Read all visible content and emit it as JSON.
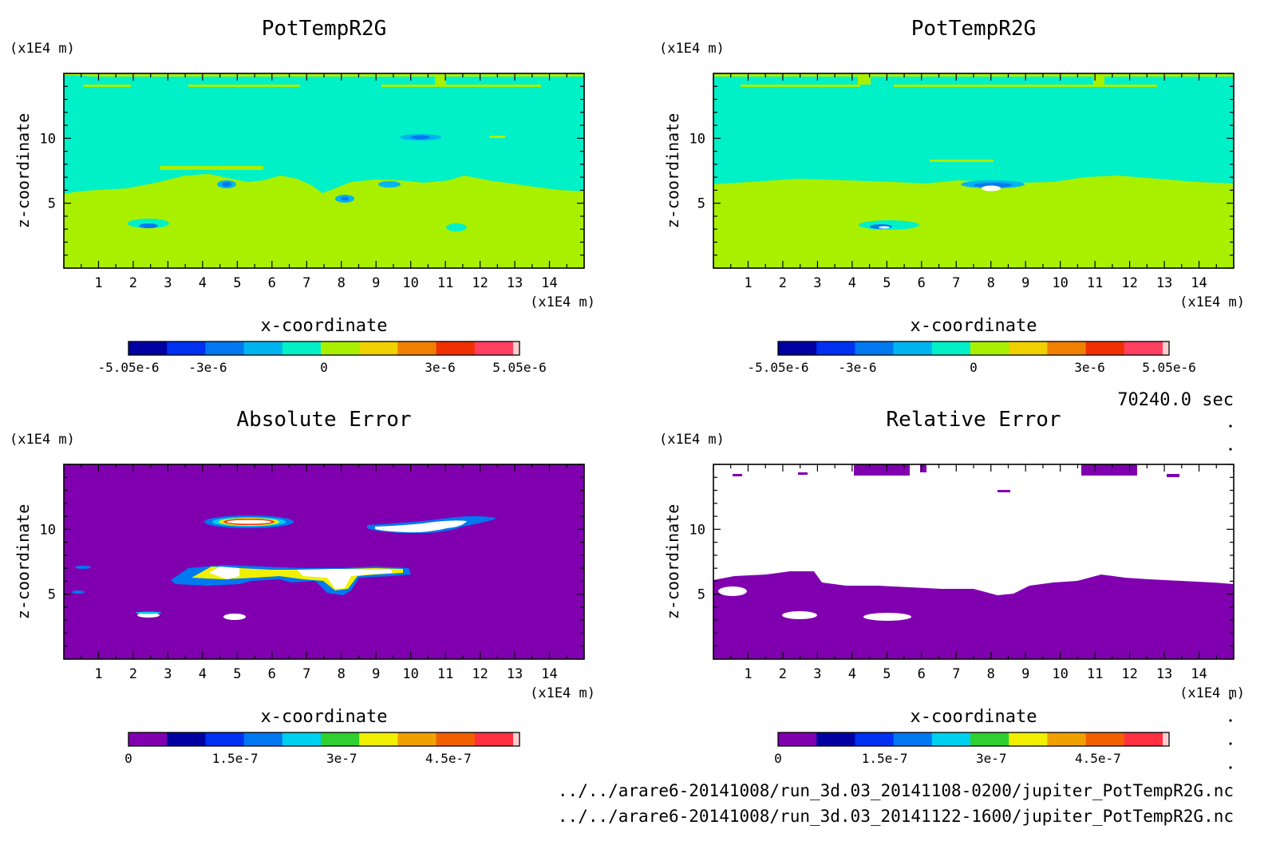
{
  "time_label": "70240.0 sec",
  "file_paths": [
    "../../arare6-20141008/run_3d.03_20141108-0200/jupiter_PotTempR2G.nc",
    "../../arare6-20141008/run_3d.03_20141122-1600/jupiter_PotTempR2G.nc"
  ],
  "colors": {
    "cyan_green": "#00f0c8",
    "yellow_green": "#a8f000",
    "purple": "#8000b0",
    "white": "#ffffff"
  },
  "chart_data": [
    {
      "type": "heatmap",
      "title": "PotTempR2G",
      "xlabel": "x-coordinate",
      "ylabel": "z-coordinate",
      "x_unit": "(x1E4 m)",
      "y_unit": "(x1E4 m)",
      "xlim": [
        0,
        15
      ],
      "ylim": [
        0,
        15
      ],
      "x_ticks": [
        "1",
        "2",
        "3",
        "4",
        "5",
        "6",
        "7",
        "8",
        "9",
        "10",
        "11",
        "12",
        "13",
        "14"
      ],
      "y_ticks": [
        "5",
        "10"
      ],
      "colorbar": {
        "colors": [
          "#0000a0",
          "#0030f0",
          "#0078f0",
          "#00b4f0",
          "#00f0c8",
          "#a8f000",
          "#f0d000",
          "#f08000",
          "#f03000",
          "#ff4060"
        ],
        "labels": [
          "-5.05e-6",
          "-3e-6",
          "0",
          "3e-6",
          "5.05e-6"
        ],
        "range": [
          -5.05e-06,
          5.05e-06
        ]
      }
    },
    {
      "type": "heatmap",
      "title": "PotTempR2G",
      "xlabel": "x-coordinate",
      "ylabel": "z-coordinate",
      "x_unit": "(x1E4 m)",
      "y_unit": "(x1E4 m)",
      "xlim": [
        0,
        15
      ],
      "ylim": [
        0,
        15
      ],
      "x_ticks": [
        "1",
        "2",
        "3",
        "4",
        "5",
        "6",
        "7",
        "8",
        "9",
        "10",
        "11",
        "12",
        "13",
        "14"
      ],
      "y_ticks": [
        "5",
        "10"
      ],
      "colorbar": {
        "colors": [
          "#0000a0",
          "#0030f0",
          "#0078f0",
          "#00b4f0",
          "#00f0c8",
          "#a8f000",
          "#f0d000",
          "#f08000",
          "#f03000",
          "#ff4060"
        ],
        "labels": [
          "-5.05e-6",
          "-3e-6",
          "0",
          "3e-6",
          "5.05e-6"
        ],
        "range": [
          -5.05e-06,
          5.05e-06
        ]
      }
    },
    {
      "type": "heatmap",
      "title": "Absolute Error",
      "xlabel": "x-coordinate",
      "ylabel": "z-coordinate",
      "x_unit": "(x1E4 m)",
      "y_unit": "(x1E4 m)",
      "xlim": [
        0,
        15
      ],
      "ylim": [
        0,
        15
      ],
      "x_ticks": [
        "1",
        "2",
        "3",
        "4",
        "5",
        "6",
        "7",
        "8",
        "9",
        "10",
        "11",
        "12",
        "13",
        "14"
      ],
      "y_ticks": [
        "5",
        "10"
      ],
      "colorbar": {
        "colors": [
          "#8000b0",
          "#0000a0",
          "#0030f0",
          "#0078f0",
          "#00d0f0",
          "#30d030",
          "#f0f000",
          "#f0a000",
          "#f06000",
          "#ff3040"
        ],
        "labels": [
          "0",
          "1.5e-7",
          "3e-7",
          "4.5e-7"
        ],
        "range": [
          0,
          5.5e-07
        ]
      }
    },
    {
      "type": "heatmap",
      "title": "Relative Error",
      "xlabel": "x-coordinate",
      "ylabel": "z-coordinate",
      "x_unit": "(x1E4 m)",
      "y_unit": "(x1E4 m)",
      "xlim": [
        0,
        15
      ],
      "ylim": [
        0,
        15
      ],
      "x_ticks": [
        "1",
        "2",
        "3",
        "4",
        "5",
        "6",
        "7",
        "8",
        "9",
        "10",
        "11",
        "12",
        "13",
        "14"
      ],
      "y_ticks": [
        "5",
        "10"
      ],
      "colorbar": {
        "colors": [
          "#8000b0",
          "#0000a0",
          "#0030f0",
          "#0078f0",
          "#00d0f0",
          "#30d030",
          "#f0f000",
          "#f0a000",
          "#f06000",
          "#ff3040"
        ],
        "labels": [
          "0",
          "1.5e-7",
          "3e-7",
          "4.5e-7"
        ],
        "range": [
          0,
          5.5e-07
        ]
      }
    }
  ]
}
